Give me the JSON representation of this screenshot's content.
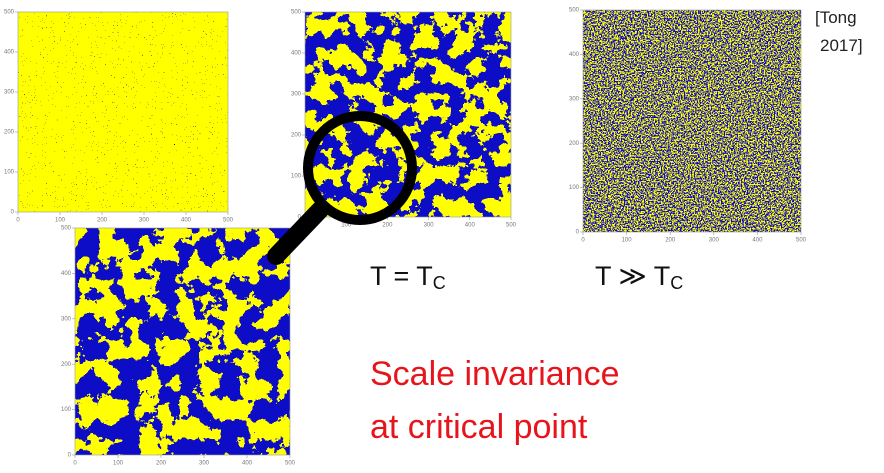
{
  "citation": [
    "[Tong",
    "2017]"
  ],
  "labels": {
    "critical": {
      "main": "T = T",
      "sub": "C"
    },
    "hot": {
      "main": "T ≫ T",
      "sub": "C"
    }
  },
  "caption": [
    "Scale invariance",
    "at critical point"
  ],
  "panels": [
    {
      "x_ticks": [
        0,
        100,
        200,
        300,
        400,
        500
      ],
      "y_ticks": [
        0,
        100,
        200,
        300,
        400,
        500
      ]
    },
    {
      "x_ticks": [
        0,
        100,
        200,
        300,
        400,
        500
      ],
      "y_ticks": [
        0,
        100,
        200,
        300,
        400,
        500
      ]
    },
    {
      "x_ticks": [
        0,
        100,
        200,
        300,
        400,
        500
      ],
      "y_ticks": [
        0,
        100,
        200,
        300,
        400,
        500
      ]
    },
    {
      "x_ticks": [
        0,
        100,
        200,
        300,
        400,
        500
      ],
      "y_ticks": [
        0,
        100,
        200,
        300,
        400,
        500
      ]
    }
  ]
}
